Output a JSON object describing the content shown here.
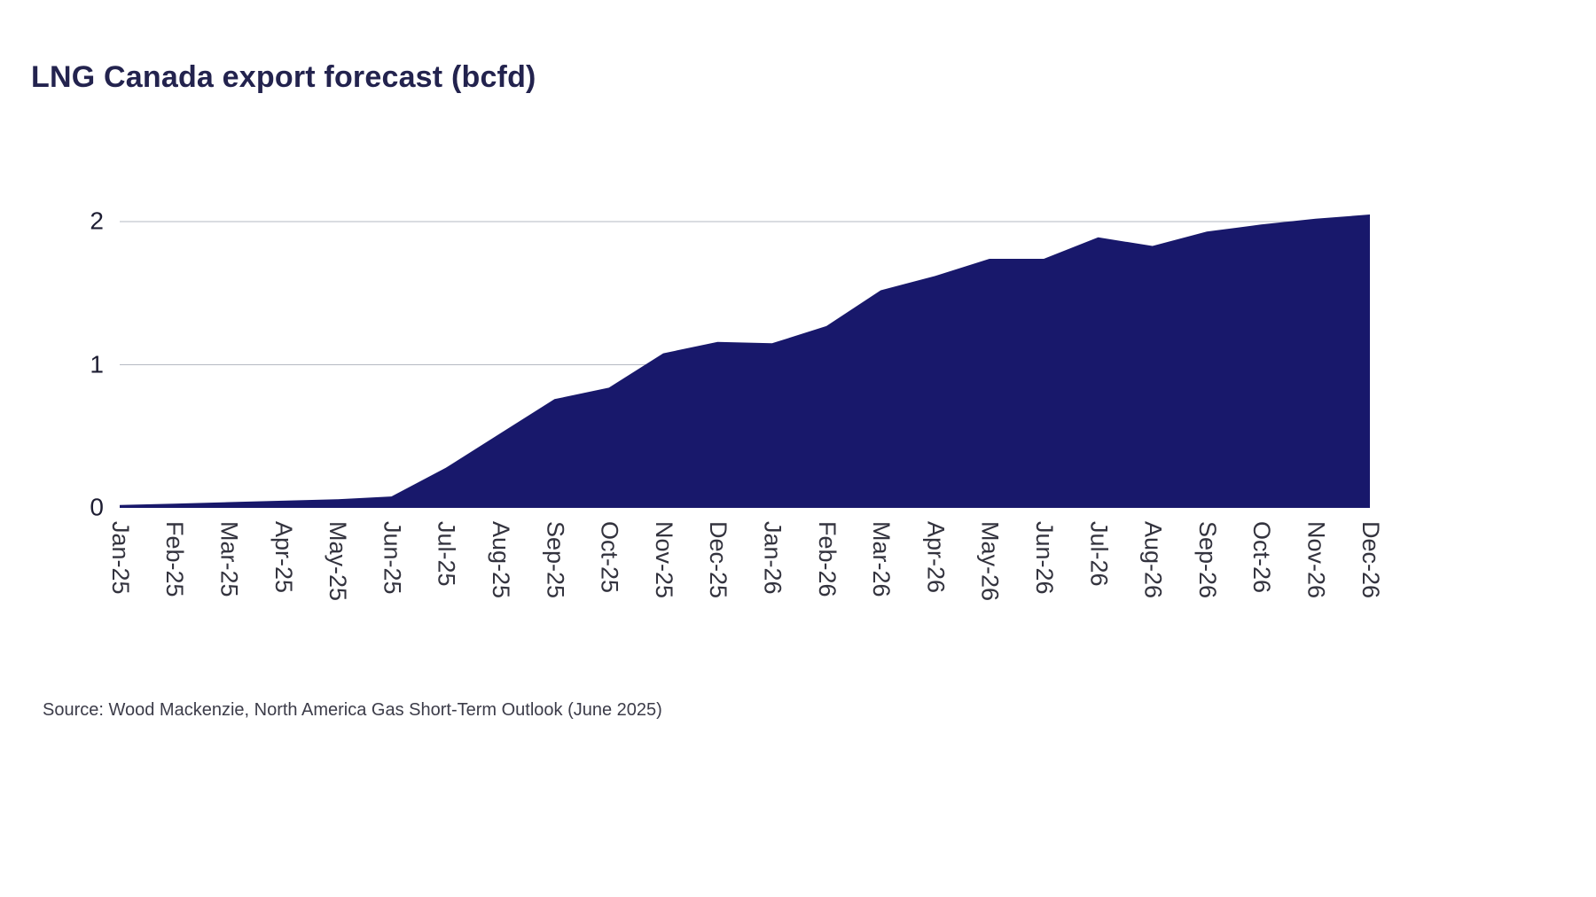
{
  "chart": {
    "title": "LNG Canada export forecast (bcfd)"
  },
  "source": "Source: Wood Mackenzie, North America Gas Short-Term Outlook (June 2025)",
  "colors": {
    "area_fill": "#18186b",
    "grid_line": "#b6b9c3",
    "title_text": "#23234e",
    "axis_text": "#33333e"
  },
  "chart_data": {
    "type": "area",
    "title": "LNG Canada export forecast (bcfd)",
    "categories": [
      "Jan-25",
      "Feb-25",
      "Mar-25",
      "Apr-25",
      "May-25",
      "Jun-25",
      "Jul-25",
      "Aug-25",
      "Sep-25",
      "Oct-25",
      "Nov-25",
      "Dec-25",
      "Jan-26",
      "Feb-26",
      "Mar-26",
      "Apr-26",
      "May-26",
      "Jun-26",
      "Jul-26",
      "Aug-26",
      "Sep-26",
      "Oct-26",
      "Nov-26",
      "Dec-26"
    ],
    "values": [
      0.02,
      0.03,
      0.04,
      0.05,
      0.06,
      0.08,
      0.28,
      0.52,
      0.76,
      0.84,
      1.08,
      1.16,
      1.15,
      1.27,
      1.52,
      1.62,
      1.74,
      1.74,
      1.89,
      1.83,
      1.93,
      1.98,
      2.02,
      2.05
    ],
    "xlabel": "",
    "ylabel": "",
    "ylim": [
      0,
      2.124
    ],
    "yticks": [
      0,
      1,
      2
    ],
    "grid": "horizontal",
    "legend": "none",
    "area_color": "#18186b",
    "grid_color": "#b6b9c3"
  }
}
